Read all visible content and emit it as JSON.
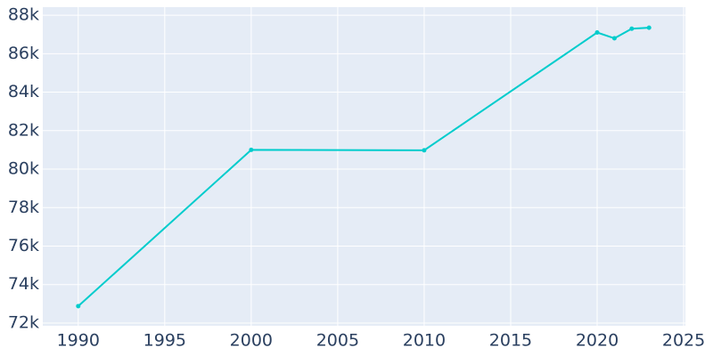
{
  "chart_data": {
    "type": "line",
    "x": [
      1990,
      2000,
      2010,
      2020,
      2021,
      2022,
      2023
    ],
    "series": [
      {
        "color": "#00cccc",
        "values": [
          72880,
          81000,
          80980,
          87100,
          86800,
          87300,
          87350
        ]
      }
    ],
    "xlim": [
      1987.95,
      2025.1
    ],
    "ylim": [
      71860,
      88420
    ],
    "xticks": [
      1990,
      1995,
      2000,
      2005,
      2010,
      2015,
      2020,
      2025
    ],
    "yticks": [
      {
        "value": 72000,
        "label": "72k"
      },
      {
        "value": 74000,
        "label": "74k"
      },
      {
        "value": 76000,
        "label": "76k"
      },
      {
        "value": 78000,
        "label": "78k"
      },
      {
        "value": 80000,
        "label": "80k"
      },
      {
        "value": 82000,
        "label": "82k"
      },
      {
        "value": 84000,
        "label": "84k"
      },
      {
        "value": 86000,
        "label": "86k"
      },
      {
        "value": 88000,
        "label": "88k"
      }
    ],
    "grid": true
  }
}
